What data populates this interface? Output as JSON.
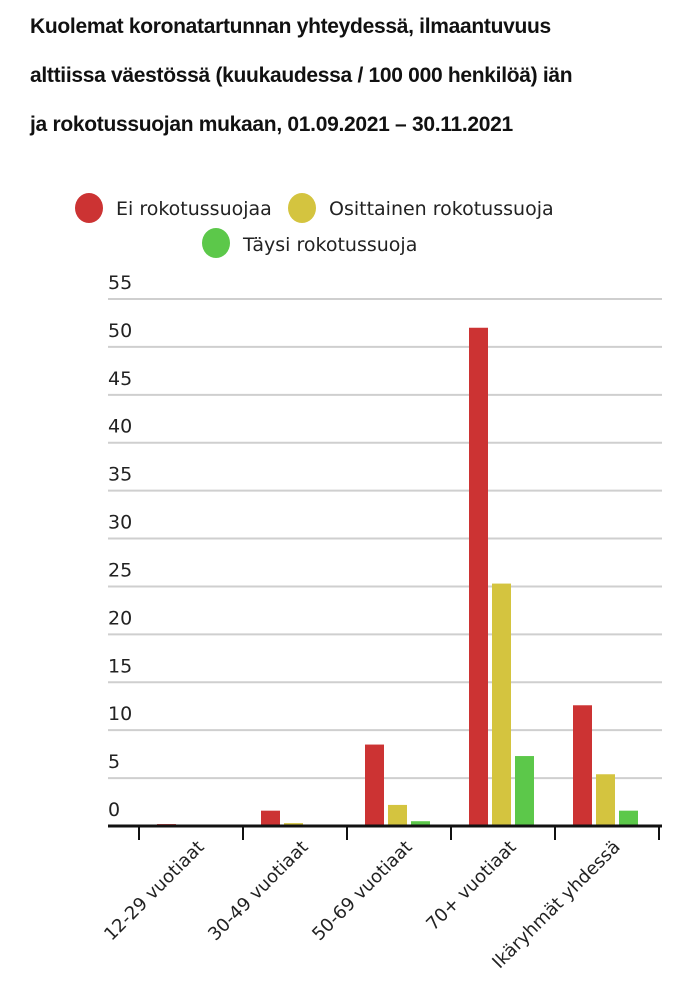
{
  "chart_data": {
    "type": "bar",
    "title_lines": [
      "Kuolemat koronatartunnan yhteydessä, ilmaantuvuus",
      "alttiissa väestössä (kuukaudessa / 100 000 henkilöä) iän",
      "ja rokotussuojan mukaan, 01.09.2021 – 30.11.2021"
    ],
    "xlabel": "",
    "ylabel": "",
    "ylim": [
      0,
      55
    ],
    "yticks": [
      0,
      5,
      10,
      15,
      20,
      25,
      30,
      35,
      40,
      45,
      50,
      55
    ],
    "grid": true,
    "legend_position": "top-center",
    "categories": [
      "12-29 vuotiaat",
      "30-49 vuotiaat",
      "50-69 vuotiaat",
      "70+ vuotiaat",
      "Ikäryhmät yhdessä"
    ],
    "series": [
      {
        "name": "Ei rokotussuojaa",
        "color": "#cc3333",
        "values": [
          0.2,
          1.6,
          8.5,
          52.0,
          12.6
        ]
      },
      {
        "name": "Osittainen rokotussuoja",
        "color": "#d4c43f",
        "values": [
          0.0,
          0.3,
          2.2,
          25.3,
          5.4
        ]
      },
      {
        "name": "Täysi rokotussuoja",
        "color": "#5cc84a",
        "values": [
          0.0,
          0.1,
          0.5,
          7.3,
          1.6
        ]
      }
    ]
  }
}
